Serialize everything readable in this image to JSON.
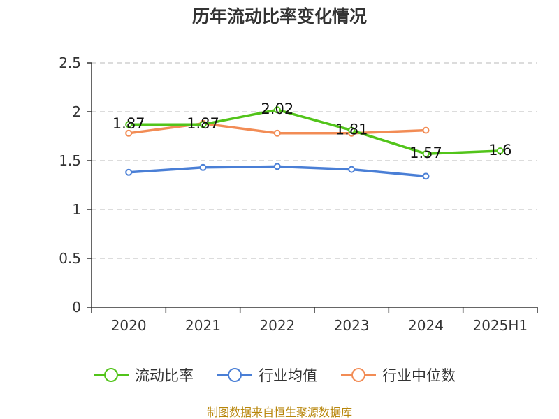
{
  "chart_data": {
    "type": "line",
    "title": "历年流动比率变化情况",
    "xlabel": "",
    "ylabel": "",
    "categories": [
      "2020",
      "2021",
      "2022",
      "2023",
      "2024",
      "2025H1"
    ],
    "ylim": [
      0,
      2.5
    ],
    "yticks": [
      "0",
      "0.5",
      "1",
      "1.5",
      "2",
      "2.5"
    ],
    "ytick_values": [
      0,
      0.5,
      1,
      1.5,
      2,
      2.5
    ],
    "grid": true,
    "legend_position": "bottom",
    "series": [
      {
        "name": "流动比率",
        "color": "#52c41a",
        "values": [
          1.87,
          1.87,
          2.02,
          1.81,
          1.57,
          1.6
        ],
        "labels": [
          "1.87",
          "1.87",
          "2.02",
          "1.81",
          "1.57",
          "1.6"
        ]
      },
      {
        "name": "行业均值",
        "color": "#4a7fd6",
        "values": [
          1.38,
          1.43,
          1.44,
          1.41,
          1.34,
          null
        ]
      },
      {
        "name": "行业中位数",
        "color": "#f28c55",
        "values": [
          1.78,
          1.88,
          1.78,
          1.78,
          1.81,
          null
        ]
      }
    ]
  },
  "footer": {
    "source": "制图数据来自恒生聚源数据库"
  }
}
